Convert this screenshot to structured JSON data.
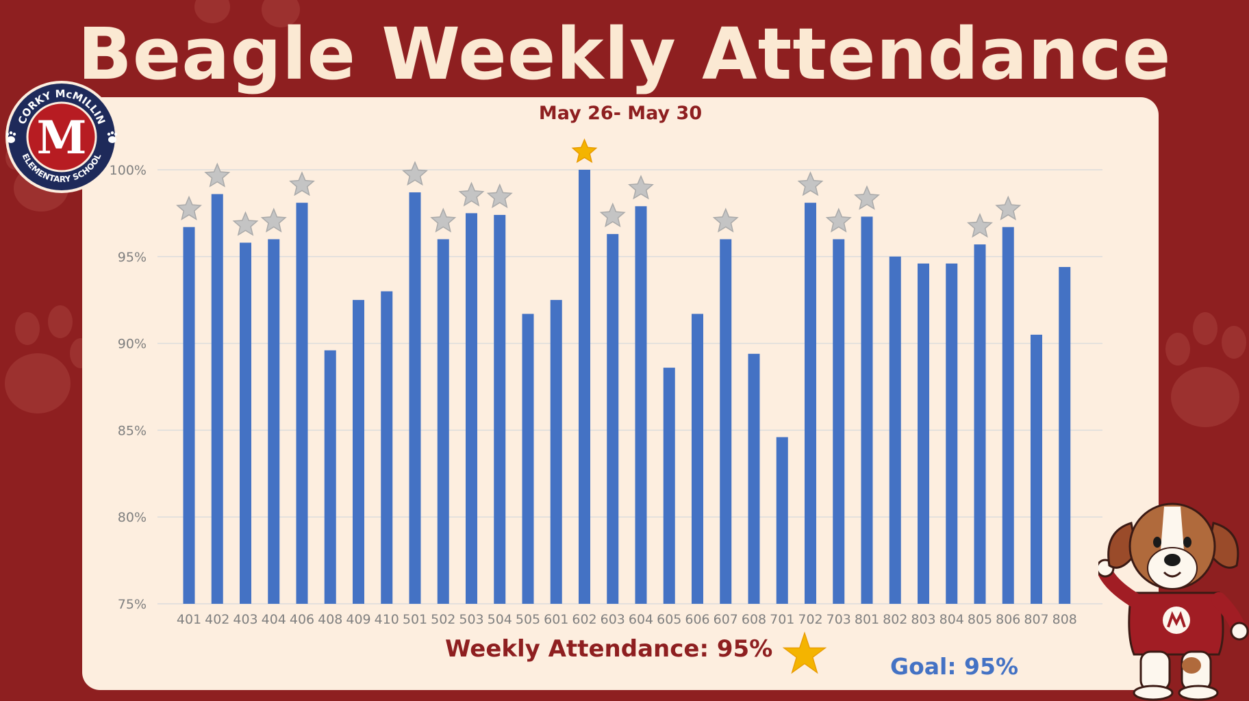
{
  "title": "Beagle Weekly Attendance",
  "subtitle": "May 26- May 30",
  "weekly_attendance_label": "Weekly Attendance: 95%",
  "goal_label": "Goal: 95%",
  "logo": {
    "top_text": "CORKY McMILLIN",
    "bottom_text": "ELEMENTARY SCHOOL",
    "letter": "M"
  },
  "colors": {
    "background": "#8e1f20",
    "panel": "#fdeedf",
    "bar": "#4472c4",
    "star_silver": "#c4c4c4",
    "star_gold": "#f4b400",
    "title": "#fbe9d3"
  },
  "chart_data": {
    "type": "bar",
    "categories": [
      "401",
      "402",
      "403",
      "404",
      "406",
      "408",
      "409",
      "410",
      "501",
      "502",
      "503",
      "504",
      "505",
      "601",
      "602",
      "603",
      "604",
      "605",
      "606",
      "607",
      "608",
      "701",
      "702",
      "703",
      "801",
      "802",
      "803",
      "804",
      "805",
      "806",
      "807",
      "808"
    ],
    "values": [
      96.7,
      98.6,
      95.8,
      96.0,
      98.1,
      89.6,
      92.5,
      93.0,
      98.7,
      96.0,
      97.5,
      97.4,
      91.7,
      92.5,
      100.0,
      96.3,
      97.9,
      88.6,
      91.7,
      96.0,
      89.4,
      84.6,
      98.1,
      96.0,
      97.3,
      95.0,
      94.6,
      94.6,
      95.7,
      96.7,
      90.5,
      94.4
    ],
    "stars": [
      "silver",
      "silver",
      "silver",
      "silver",
      "silver",
      "none",
      "none",
      "none",
      "silver",
      "silver",
      "silver",
      "silver",
      "none",
      "none",
      "gold",
      "silver",
      "silver",
      "none",
      "none",
      "silver",
      "none",
      "none",
      "silver",
      "silver",
      "silver",
      "none",
      "none",
      "none",
      "silver",
      "silver",
      "none",
      "none"
    ],
    "yticks": [
      "75%",
      "80%",
      "85%",
      "90%",
      "95%",
      "100%"
    ],
    "ylim": [
      75,
      100
    ],
    "grid": true,
    "xlabel": "",
    "ylabel": ""
  }
}
